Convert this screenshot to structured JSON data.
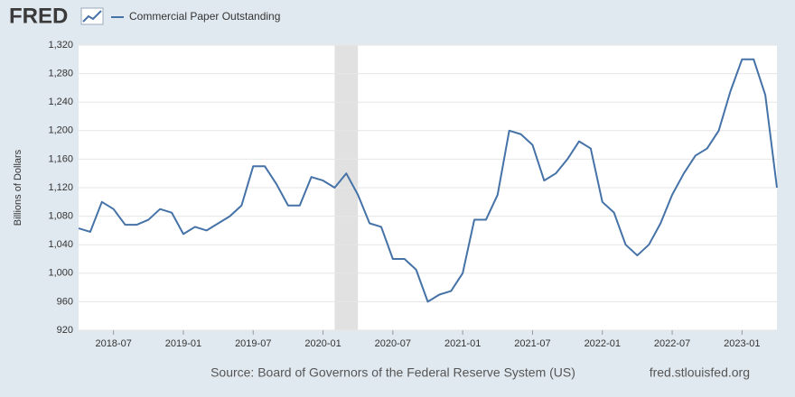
{
  "chart_data": {
    "type": "line",
    "logo": "FRED",
    "y_label": "Billions of Dollars",
    "source": "Source: Board of Governors of the Federal Reserve System (US)",
    "site": "fred.stlouisfed.org",
    "x": [
      "2018-04",
      "2018-05",
      "2018-06",
      "2018-07",
      "2018-08",
      "2018-09",
      "2018-10",
      "2018-11",
      "2018-12",
      "2019-01",
      "2019-02",
      "2019-03",
      "2019-04",
      "2019-05",
      "2019-06",
      "2019-07",
      "2019-08",
      "2019-09",
      "2019-10",
      "2019-11",
      "2019-12",
      "2020-01",
      "2020-02",
      "2020-03",
      "2020-04",
      "2020-05",
      "2020-06",
      "2020-07",
      "2020-08",
      "2020-09",
      "2020-10",
      "2020-11",
      "2020-12",
      "2021-01",
      "2021-02",
      "2021-03",
      "2021-04",
      "2021-05",
      "2021-06",
      "2021-07",
      "2021-08",
      "2021-09",
      "2021-10",
      "2021-11",
      "2021-12",
      "2022-01",
      "2022-02",
      "2022-03",
      "2022-04",
      "2022-05",
      "2022-06",
      "2022-07",
      "2022-08",
      "2022-09",
      "2022-10",
      "2022-11",
      "2022-12",
      "2023-01",
      "2023-02",
      "2023-03",
      "2023-04"
    ],
    "series": [
      {
        "name": "Commercial Paper Outstanding",
        "color": "#4572a7",
        "values": [
          1063,
          1058,
          1100,
          1090,
          1068,
          1068,
          1075,
          1090,
          1085,
          1055,
          1065,
          1060,
          1070,
          1080,
          1095,
          1150,
          1150,
          1125,
          1095,
          1095,
          1135,
          1130,
          1120,
          1140,
          1110,
          1070,
          1065,
          1020,
          1020,
          1005,
          960,
          970,
          975,
          1000,
          1075,
          1075,
          1110,
          1200,
          1195,
          1180,
          1130,
          1140,
          1160,
          1185,
          1175,
          1100,
          1085,
          1040,
          1025,
          1040,
          1070,
          1110,
          1140,
          1165,
          1175,
          1200,
          1255,
          1300,
          1300,
          1250,
          1120
        ]
      }
    ],
    "recessions": [
      {
        "start": "2020-02",
        "end": "2020-04"
      }
    ],
    "xlim": [
      "2018-04",
      "2023-04"
    ],
    "xticks": [
      "2018-07",
      "2019-01",
      "2019-07",
      "2020-01",
      "2020-07",
      "2021-01",
      "2021-07",
      "2022-01",
      "2022-07",
      "2023-01"
    ],
    "ylim": [
      920,
      1320
    ],
    "yticks": [
      {
        "value": 920,
        "label": "920"
      },
      {
        "value": 960,
        "label": "960"
      },
      {
        "value": 1000,
        "label": "1,000"
      },
      {
        "value": 1040,
        "label": "1,040"
      },
      {
        "value": 1080,
        "label": "1,080"
      },
      {
        "value": 1120,
        "label": "1,120"
      },
      {
        "value": 1160,
        "label": "1,160"
      },
      {
        "value": 1200,
        "label": "1,200"
      },
      {
        "value": 1240,
        "label": "1,240"
      },
      {
        "value": 1280,
        "label": "1,280"
      },
      {
        "value": 1320,
        "label": "1,320"
      }
    ],
    "grid": true
  }
}
